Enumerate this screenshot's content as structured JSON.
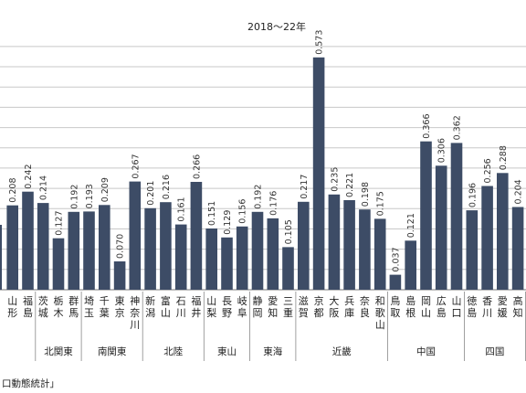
{
  "chart_data": {
    "type": "bar",
    "title": "2018～22年",
    "ylim": [
      0,
      0.62
    ],
    "grid": true,
    "bar_color": "#3d4c66",
    "grid_color": "#c8c8c8",
    "source": "口動態統計」",
    "categories": [
      "山形",
      "福島",
      "茨城",
      "栃木",
      "群馬",
      "埼玉",
      "千葉",
      "東京",
      "神奈川",
      "新潟",
      "富山",
      "石川",
      "福井",
      "山梨",
      "長野",
      "岐阜",
      "静岡",
      "愛知",
      "三重",
      "滋賀",
      "京都",
      "大阪",
      "兵庫",
      "奈良",
      "和歌山",
      "鳥取",
      "島根",
      "岡山",
      "広島",
      "山口",
      "徳島",
      "香川",
      "愛媛",
      "高知"
    ],
    "values": [
      0.208,
      0.242,
      0.214,
      0.127,
      0.192,
      0.193,
      0.209,
      0.07,
      0.267,
      0.201,
      0.216,
      0.161,
      0.266,
      0.151,
      0.129,
      0.156,
      0.192,
      0.176,
      0.105,
      0.217,
      0.573,
      0.235,
      0.221,
      0.198,
      0.175,
      0.037,
      0.121,
      0.366,
      0.306,
      0.362,
      0.196,
      0.256,
      0.288,
      0.204
    ],
    "value_labels": [
      "0.208",
      "0.242",
      "0.214",
      "0.127",
      "0.192",
      "0.193",
      "0.209",
      "0.070",
      "0.267",
      "0.201",
      "0.216",
      "0.161",
      "0.266",
      "0.151",
      "0.129",
      "0.156",
      "0.192",
      "0.176",
      "0.105",
      "0.217",
      "0.573",
      "0.235",
      "0.221",
      "0.198",
      "0.175",
      "0.037",
      "0.121",
      "0.366",
      "0.306",
      "0.362",
      "0.196",
      "0.256",
      "0.288",
      "0.204"
    ],
    "regions": [
      {
        "name": "北関東",
        "start": 2,
        "end": 4
      },
      {
        "name": "南関東",
        "start": 5,
        "end": 8
      },
      {
        "name": "北陸",
        "start": 9,
        "end": 12
      },
      {
        "name": "東山",
        "start": 13,
        "end": 15
      },
      {
        "name": "東海",
        "start": 16,
        "end": 18
      },
      {
        "name": "近畿",
        "start": 19,
        "end": 24
      },
      {
        "name": "中国",
        "start": 25,
        "end": 29
      },
      {
        "name": "四国",
        "start": 30,
        "end": 33
      }
    ]
  }
}
